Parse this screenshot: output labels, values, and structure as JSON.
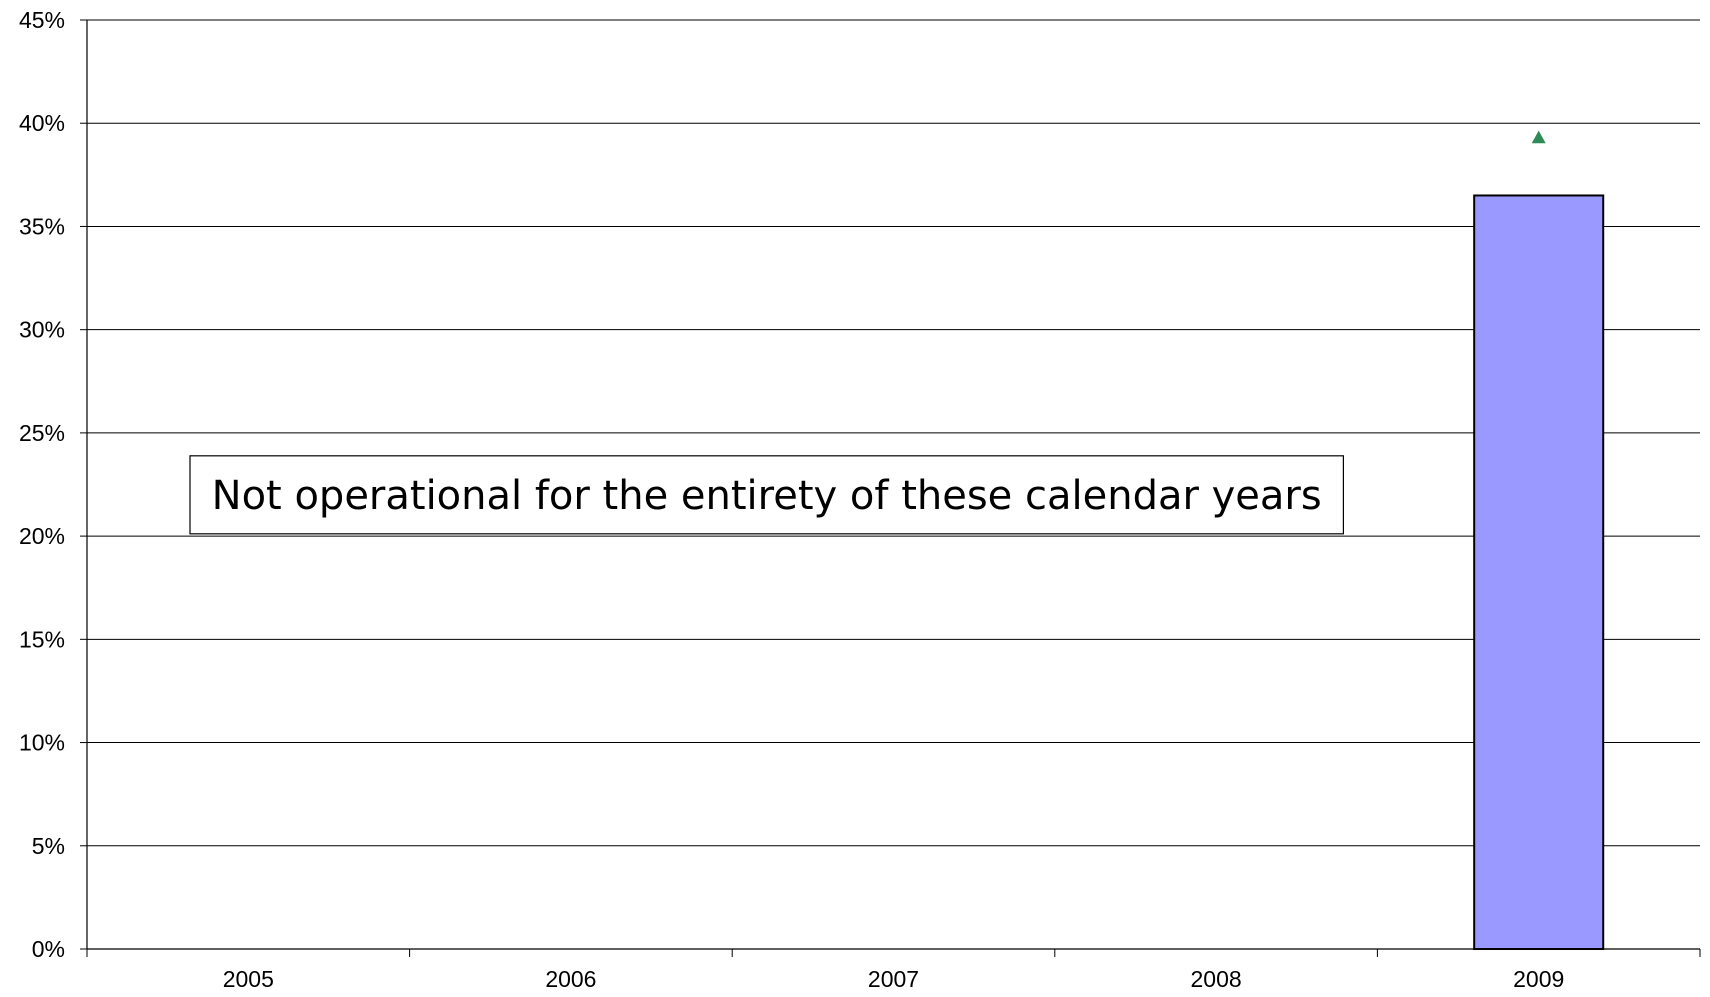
{
  "chart_data": {
    "type": "bar",
    "title": "",
    "xlabel": "",
    "ylabel": "",
    "categories": [
      "2005",
      "2006",
      "2007",
      "2008",
      "2009"
    ],
    "series": [
      {
        "values": [
          null,
          null,
          null,
          null,
          0.365
        ],
        "color": "#9999ff",
        "edge_color": "#000000"
      },
      {
        "marker": "triangle",
        "values": [
          null,
          null,
          null,
          null,
          0.393
        ],
        "color": "#2e8b57"
      }
    ],
    "ylim": [
      0,
      0.45
    ],
    "yticks": [
      0,
      0.05,
      0.1,
      0.15,
      0.2,
      0.25,
      0.3,
      0.35,
      0.4,
      0.45
    ],
    "ytick_labels": [
      "0%",
      "5%",
      "10%",
      "15%",
      "20%",
      "25%",
      "30%",
      "35%",
      "40%",
      "45%"
    ],
    "grid": true,
    "legend": "none",
    "annotation": {
      "text": "Not operational for the entirety of these calendar years",
      "category_span": [
        "2005",
        "2008"
      ],
      "y_center": 0.22
    }
  }
}
